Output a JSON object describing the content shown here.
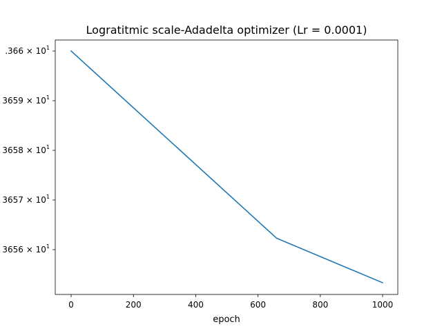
{
  "chart_data": {
    "type": "line",
    "title": "Logratitmic scale-Adadelta optimizer (Lr = 0.0001)",
    "xlabel": "epoch",
    "ylabel": "",
    "yscale": "log",
    "grid": false,
    "legend": "none",
    "xlim": [
      -50,
      1050
    ],
    "ylim": [
      36.55475,
      36.66075
    ],
    "x_ticks": [
      0,
      200,
      400,
      600,
      800,
      1000
    ],
    "x_tick_labels": [
      "0",
      "200",
      "400",
      "600",
      "800",
      "1000"
    ],
    "y_ticks": [
      36.66,
      36.59,
      36.58,
      36.57,
      36.56
    ],
    "y_tick_labels": [
      {
        "base": ".366",
        "exp": "1"
      },
      {
        "base": "3659",
        "exp": "1"
      },
      {
        "base": "3658",
        "exp": "1"
      },
      {
        "base": "3657",
        "exp": "1"
      },
      {
        "base": "3656",
        "exp": "1"
      }
    ],
    "series": [
      {
        "color": "#1f77b4",
        "x": [
          0,
          660,
          1000
        ],
        "y": [
          36.66,
          36.5735,
          36.553
        ]
      }
    ]
  }
}
